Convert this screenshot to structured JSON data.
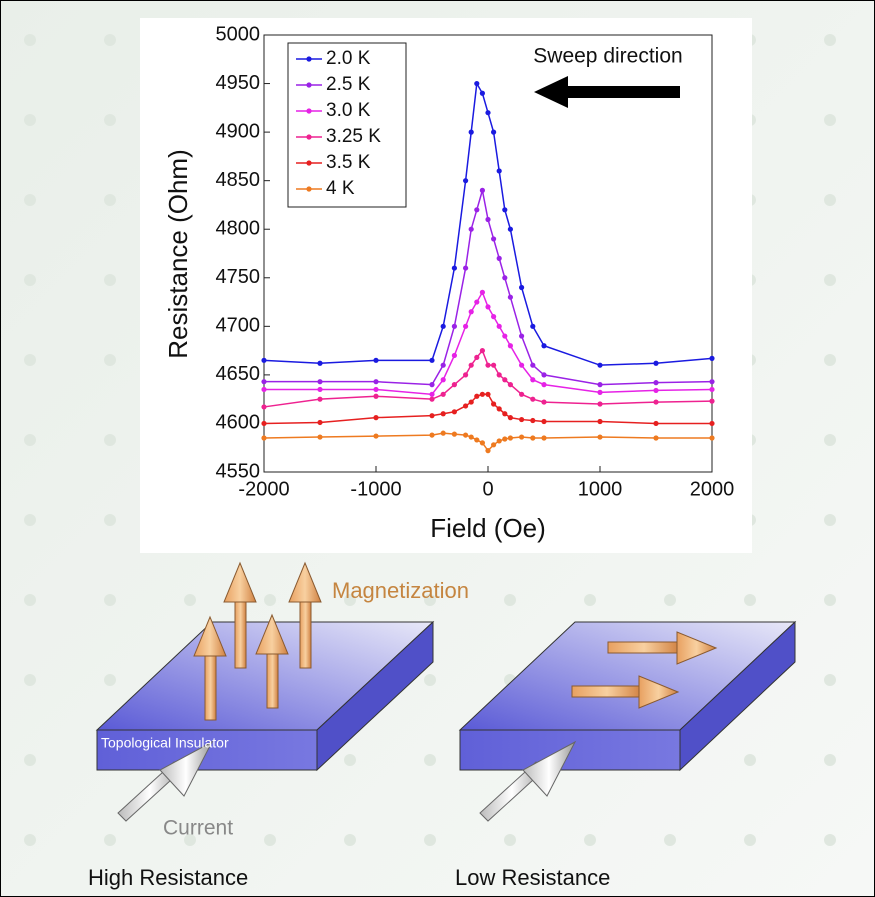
{
  "chart_data": {
    "type": "line",
    "x_label": "Field (Oe)",
    "y_label": "Resistance (Ohm)",
    "annotations": [
      "Sweep direction"
    ],
    "x": [
      -2000,
      -1500,
      -1000,
      -500,
      -400,
      -300,
      -200,
      -150,
      -100,
      -50,
      0,
      50,
      100,
      150,
      200,
      300,
      400,
      500,
      1000,
      1500,
      2000
    ],
    "series": [
      {
        "name": "2.0 K",
        "color": "#1a1ae0",
        "values": [
          4665,
          4662,
          4665,
          4665,
          4700,
          4760,
          4850,
          4900,
          4950,
          4940,
          4920,
          4900,
          4860,
          4820,
          4800,
          4740,
          4700,
          4680,
          4660,
          4662,
          4667
        ]
      },
      {
        "name": "2.5 K",
        "color": "#9a22e6",
        "values": [
          4643,
          4643,
          4643,
          4640,
          4660,
          4700,
          4760,
          4800,
          4820,
          4840,
          4810,
          4790,
          4770,
          4750,
          4730,
          4690,
          4660,
          4650,
          4640,
          4642,
          4643
        ]
      },
      {
        "name": "3.0 K",
        "color": "#e622e6",
        "values": [
          4635,
          4635,
          4635,
          4630,
          4645,
          4670,
          4700,
          4715,
          4725,
          4735,
          4720,
          4710,
          4700,
          4690,
          4680,
          4660,
          4645,
          4640,
          4632,
          4634,
          4635
        ]
      },
      {
        "name": "3.25 K",
        "color": "#ee2290",
        "values": [
          4617,
          4625,
          4628,
          4625,
          4630,
          4640,
          4650,
          4660,
          4668,
          4675,
          4660,
          4660,
          4650,
          4645,
          4640,
          4630,
          4625,
          4622,
          4620,
          4622,
          4623
        ]
      },
      {
        "name": "3.5 K",
        "color": "#e62020",
        "values": [
          4600,
          4601,
          4606,
          4608,
          4610,
          4612,
          4618,
          4622,
          4628,
          4630,
          4630,
          4620,
          4615,
          4610,
          4606,
          4604,
          4603,
          4602,
          4602,
          4600,
          4600
        ]
      },
      {
        "name": "4 K",
        "color": "#ee7a20",
        "values": [
          4585,
          4586,
          4587,
          4588,
          4590,
          4589,
          4588,
          4586,
          4583,
          4580,
          4572,
          4578,
          4582,
          4584,
          4585,
          4586,
          4585,
          4585,
          4586,
          4585,
          4585
        ]
      }
    ],
    "xlim": [
      -2000,
      2000
    ],
    "xticks": [
      -2000,
      -1000,
      0,
      1000,
      2000
    ],
    "ylim": [
      4550,
      5000
    ],
    "yticks": [
      4550,
      4600,
      4650,
      4700,
      4750,
      4800,
      4850,
      4900,
      4950,
      5000
    ],
    "legend": "upper left",
    "grid": false
  },
  "diagram": {
    "magnetization": "Magnetization",
    "material": "Topological Insulator",
    "current": "Current",
    "left_caption": "High Resistance",
    "right_caption": "Low Resistance"
  }
}
